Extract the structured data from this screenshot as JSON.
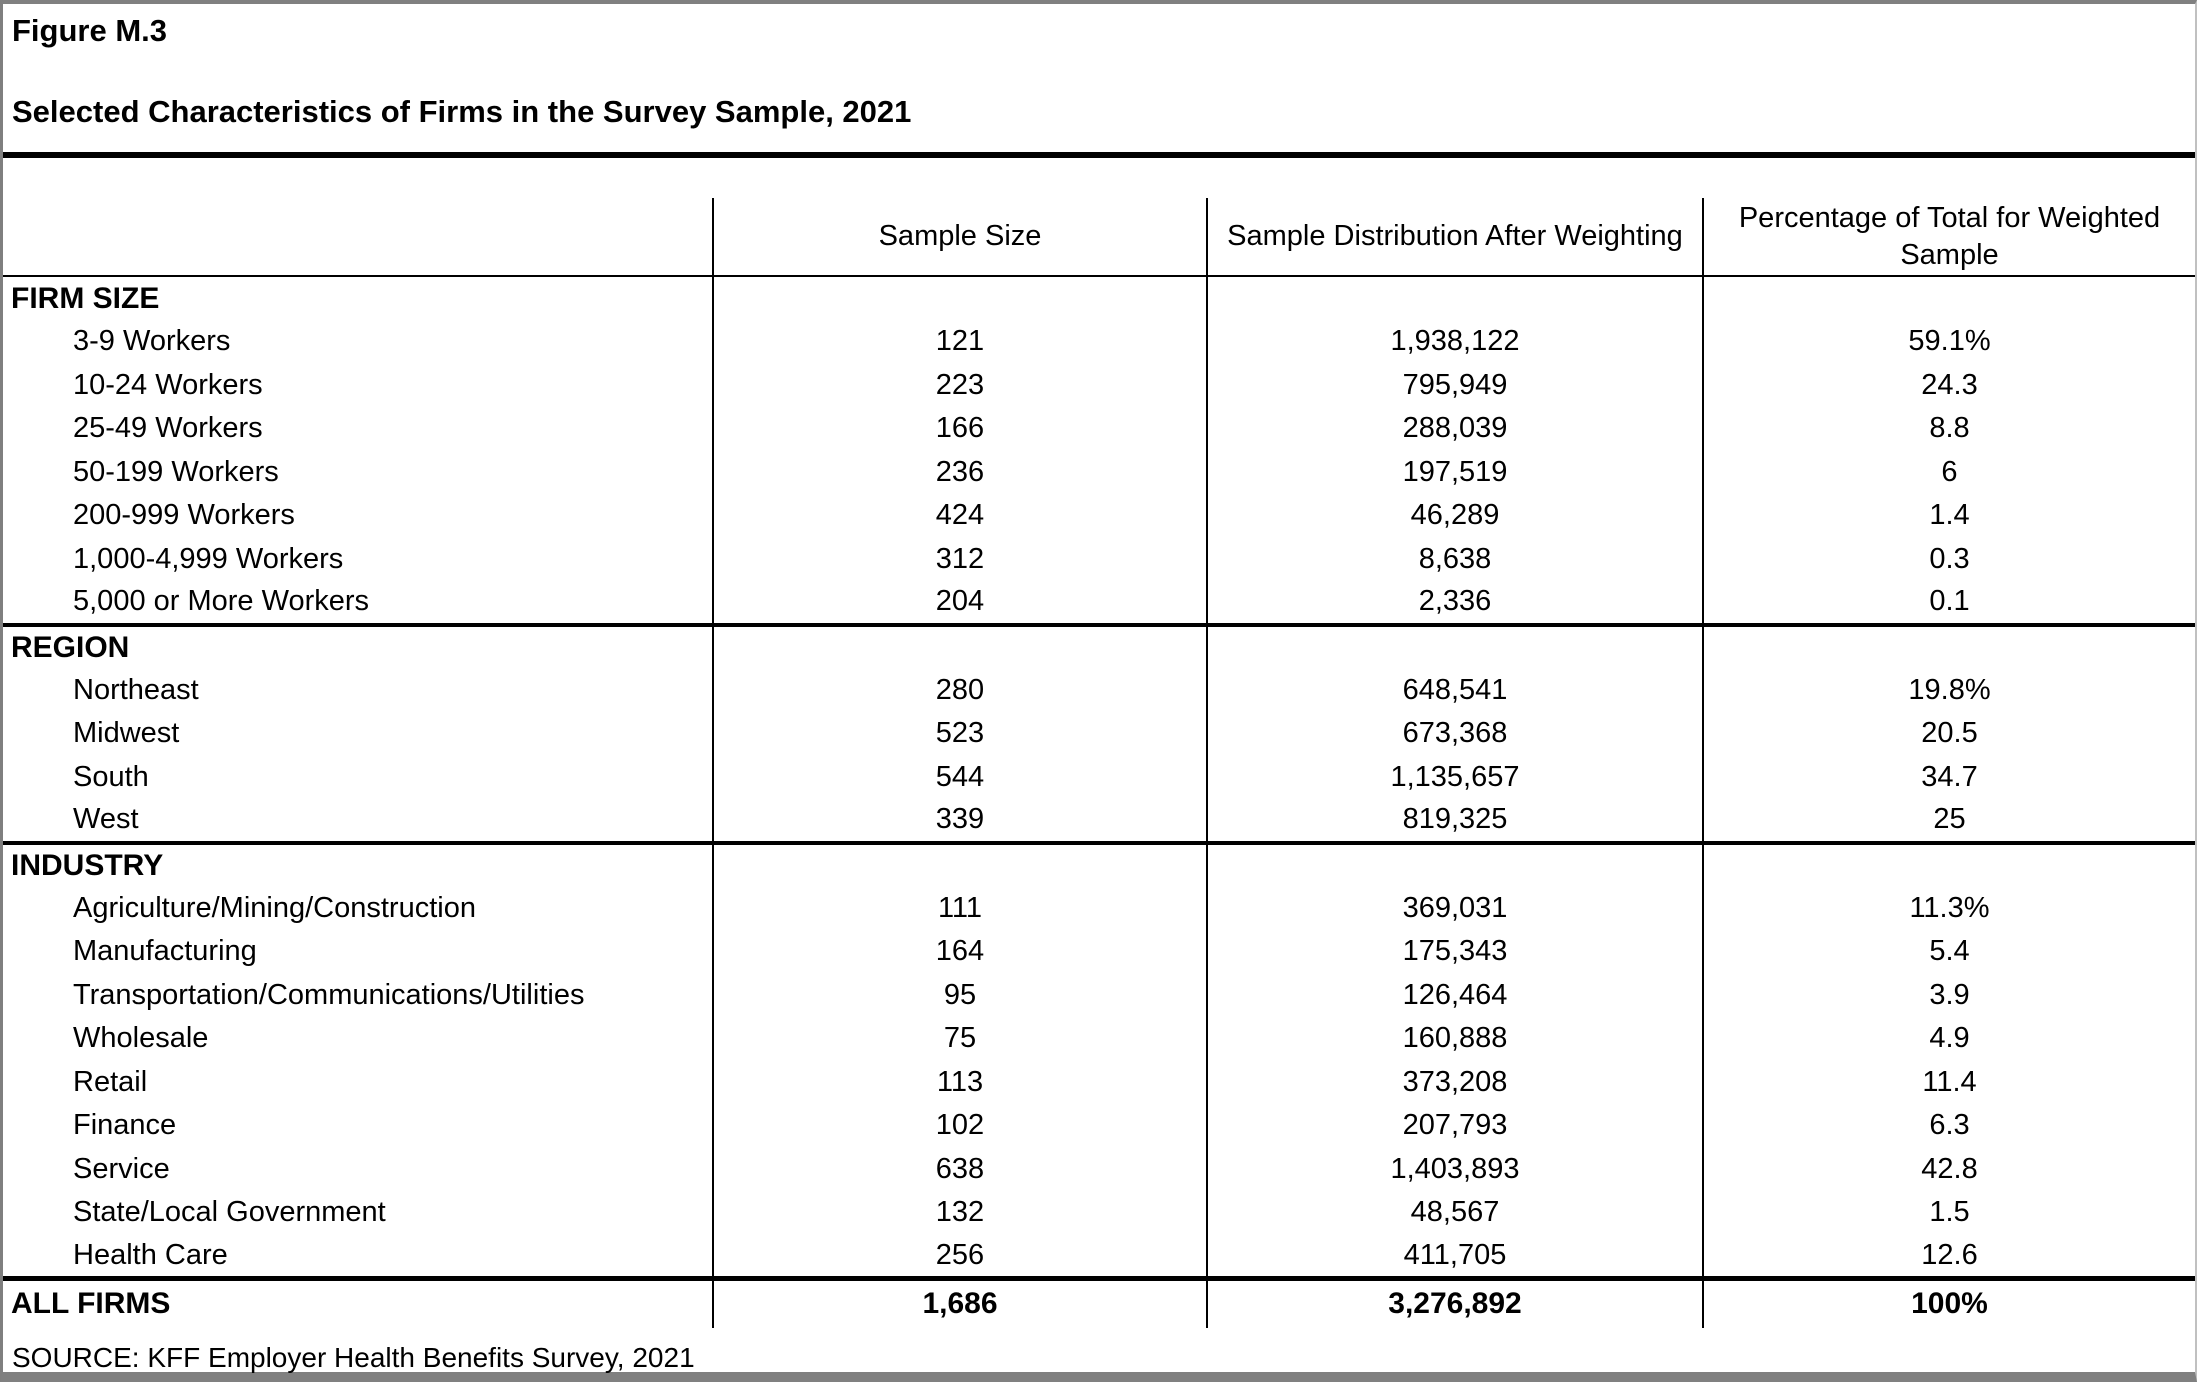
{
  "figure": {
    "label": "Figure M.3",
    "title": "Selected Characteristics of Firms in the Survey Sample, 2021"
  },
  "table": {
    "columns": {
      "sample_size": "Sample Size",
      "distribution": "Sample Distribution After Weighting",
      "percentage": "Percentage of Total for Weighted Sample"
    },
    "sections": [
      {
        "name": "FIRM SIZE",
        "rows": [
          {
            "label": "3-9 Workers",
            "sample_size": "121",
            "distribution": "1,938,122",
            "percentage": "59.1%"
          },
          {
            "label": "10-24 Workers",
            "sample_size": "223",
            "distribution": "795,949",
            "percentage": "24.3"
          },
          {
            "label": "25-49 Workers",
            "sample_size": "166",
            "distribution": "288,039",
            "percentage": "8.8"
          },
          {
            "label": "50-199 Workers",
            "sample_size": "236",
            "distribution": "197,519",
            "percentage": "6"
          },
          {
            "label": "200-999 Workers",
            "sample_size": "424",
            "distribution": "46,289",
            "percentage": "1.4"
          },
          {
            "label": "1,000-4,999 Workers",
            "sample_size": "312",
            "distribution": "8,638",
            "percentage": "0.3"
          },
          {
            "label": "5,000 or More Workers",
            "sample_size": "204",
            "distribution": "2,336",
            "percentage": "0.1"
          }
        ]
      },
      {
        "name": "REGION",
        "rows": [
          {
            "label": "Northeast",
            "sample_size": "280",
            "distribution": "648,541",
            "percentage": "19.8%"
          },
          {
            "label": "Midwest",
            "sample_size": "523",
            "distribution": "673,368",
            "percentage": "20.5"
          },
          {
            "label": "South",
            "sample_size": "544",
            "distribution": "1,135,657",
            "percentage": "34.7"
          },
          {
            "label": "West",
            "sample_size": "339",
            "distribution": "819,325",
            "percentage": "25"
          }
        ]
      },
      {
        "name": "INDUSTRY",
        "rows": [
          {
            "label": "Agriculture/Mining/Construction",
            "sample_size": "111",
            "distribution": "369,031",
            "percentage": "11.3%"
          },
          {
            "label": "Manufacturing",
            "sample_size": "164",
            "distribution": "175,343",
            "percentage": "5.4"
          },
          {
            "label": "Transportation/Communications/Utilities",
            "sample_size": "95",
            "distribution": "126,464",
            "percentage": "3.9"
          },
          {
            "label": "Wholesale",
            "sample_size": "75",
            "distribution": "160,888",
            "percentage": "4.9"
          },
          {
            "label": "Retail",
            "sample_size": "113",
            "distribution": "373,208",
            "percentage": "11.4"
          },
          {
            "label": "Finance",
            "sample_size": "102",
            "distribution": "207,793",
            "percentage": "6.3"
          },
          {
            "label": "Service",
            "sample_size": "638",
            "distribution": "1,403,893",
            "percentage": "42.8"
          },
          {
            "label": "State/Local Government",
            "sample_size": "132",
            "distribution": "48,567",
            "percentage": "1.5"
          },
          {
            "label": "Health Care",
            "sample_size": "256",
            "distribution": "411,705",
            "percentage": "12.6"
          }
        ]
      }
    ],
    "total": {
      "label": "ALL FIRMS",
      "sample_size": "1,686",
      "distribution": "3,276,892",
      "percentage": "100%"
    }
  },
  "source": "SOURCE: KFF Employer Health Benefits Survey, 2021"
}
